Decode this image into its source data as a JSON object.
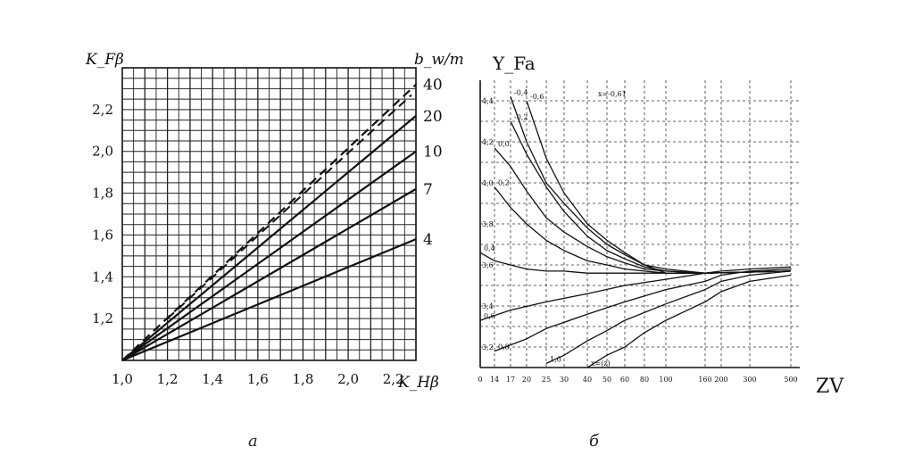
{
  "captions": {
    "left": "а",
    "right": "б"
  },
  "chart_data": [
    {
      "type": "line",
      "ylabel": "K_Fβ",
      "xlabel": "K_Hβ",
      "right_label": "b_w/m",
      "x_tick_labels": [
        "1,0",
        "1,2",
        "1,4",
        "1,6",
        "1,8",
        "2,0",
        "2,2"
      ],
      "y_tick_labels": [
        "1,2",
        "1,4",
        "1,6",
        "1,8",
        "2,0",
        "2,2"
      ],
      "xlim": [
        1.0,
        2.3
      ],
      "ylim": [
        1.0,
        2.4
      ],
      "grid": true,
      "series": [
        {
          "name": "40",
          "style": "dashed",
          "x": [
            1.0,
            2.3
          ],
          "y": [
            1.0,
            2.32
          ]
        },
        {
          "name": "20",
          "style": "solid",
          "x": [
            1.0,
            2.3
          ],
          "y": [
            1.0,
            2.17
          ]
        },
        {
          "name": "10",
          "style": "solid",
          "x": [
            1.0,
            2.3
          ],
          "y": [
            1.0,
            2.0
          ]
        },
        {
          "name": "7",
          "style": "solid",
          "x": [
            1.0,
            2.3
          ],
          "y": [
            1.0,
            1.82
          ]
        },
        {
          "name": "4",
          "style": "solid",
          "x": [
            1.0,
            2.3
          ],
          "y": [
            1.0,
            1.58
          ]
        }
      ],
      "extra_dashed": {
        "x": [
          1.2,
          2.28
        ],
        "y": [
          1.2,
          2.27
        ]
      }
    },
    {
      "type": "line",
      "ylabel": "Y_Fa",
      "xlabel": "ZV",
      "x_tick_labels": [
        "0",
        "14",
        "17",
        "20",
        "25",
        "30",
        "40",
        "50",
        "60",
        "80",
        "100",
        "160",
        "200",
        "300",
        "500"
      ],
      "y_tick_labels": [
        "3,2",
        "3,4",
        "3,6",
        "3,8",
        "4,0",
        "4,2",
        "4,4"
      ],
      "ylim": [
        3.1,
        4.5
      ],
      "grid": true,
      "series": [
        {
          "name": "-0,6",
          "x": [
            "20",
            "25",
            "30",
            "40",
            "50",
            "60",
            "80",
            "100",
            "160",
            "500"
          ],
          "y": [
            4.4,
            4.12,
            3.95,
            3.8,
            3.72,
            3.66,
            3.6,
            3.56,
            3.56,
            3.57
          ]
        },
        {
          "name": "-0,4",
          "x": [
            "17",
            "20",
            "25",
            "30",
            "40",
            "50",
            "60",
            "80",
            "100",
            "160",
            "500"
          ],
          "y": [
            4.42,
            4.2,
            4.0,
            3.9,
            3.78,
            3.7,
            3.65,
            3.6,
            3.58,
            3.56,
            3.57
          ]
        },
        {
          "name": "-0,2",
          "x": [
            "17",
            "20",
            "25",
            "30",
            "40",
            "50",
            "60",
            "80",
            "100",
            "160",
            "500"
          ],
          "y": [
            4.3,
            4.14,
            3.98,
            3.86,
            3.74,
            3.67,
            3.63,
            3.59,
            3.57,
            3.56,
            3.57
          ]
        },
        {
          "name": "0,0",
          "x": [
            "14",
            "17",
            "20",
            "25",
            "30",
            "40",
            "50",
            "60",
            "80",
            "100",
            "160",
            "500"
          ],
          "y": [
            4.17,
            4.08,
            3.96,
            3.83,
            3.76,
            3.69,
            3.64,
            3.61,
            3.58,
            3.57,
            3.56,
            3.57
          ]
        },
        {
          "name": "0,2",
          "x": [
            "14",
            "17",
            "20",
            "25",
            "30",
            "40",
            "50",
            "60",
            "80",
            "100",
            "160",
            "500"
          ],
          "y": [
            3.98,
            3.88,
            3.8,
            3.72,
            3.67,
            3.62,
            3.6,
            3.58,
            3.57,
            3.56,
            3.56,
            3.57
          ]
        },
        {
          "name": "0,4",
          "x": [
            "0",
            "14",
            "17",
            "20",
            "25",
            "30",
            "40",
            "60",
            "100",
            "160",
            "500"
          ],
          "y": [
            3.66,
            3.62,
            3.6,
            3.58,
            3.57,
            3.57,
            3.56,
            3.56,
            3.56,
            3.56,
            3.57
          ]
        },
        {
          "name": "0,6",
          "x": [
            "0",
            "17",
            "25",
            "40",
            "60",
            "100",
            "160",
            "200",
            "300",
            "500"
          ],
          "y": [
            3.33,
            3.38,
            3.42,
            3.46,
            3.5,
            3.53,
            3.56,
            3.57,
            3.58,
            3.59
          ]
        },
        {
          "name": "0,8",
          "x": [
            "14",
            "20",
            "25",
            "40",
            "60",
            "100",
            "160",
            "200",
            "300",
            "500"
          ],
          "y": [
            3.18,
            3.24,
            3.29,
            3.36,
            3.42,
            3.48,
            3.52,
            3.55,
            3.57,
            3.58
          ]
        },
        {
          "name": "1,0",
          "x": [
            "25",
            "30",
            "40",
            "50",
            "60",
            "100",
            "160",
            "200",
            "300",
            "500"
          ],
          "y": [
            3.12,
            3.16,
            3.23,
            3.28,
            3.33,
            3.41,
            3.48,
            3.52,
            3.55,
            3.57
          ]
        },
        {
          "name": "x=(z)",
          "x": [
            "40",
            "50",
            "60",
            "80",
            "100",
            "160",
            "200",
            "300",
            "500"
          ],
          "y": [
            3.1,
            3.16,
            3.2,
            3.27,
            3.33,
            3.42,
            3.47,
            3.52,
            3.55
          ]
        }
      ],
      "annotation_top": "x=-0,61"
    }
  ]
}
